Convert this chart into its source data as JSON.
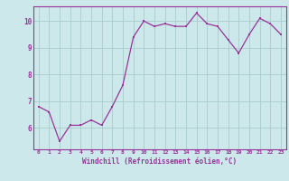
{
  "x": [
    0,
    1,
    2,
    3,
    4,
    5,
    6,
    7,
    8,
    9,
    10,
    11,
    12,
    13,
    14,
    15,
    16,
    17,
    18,
    19,
    20,
    21,
    22,
    23
  ],
  "y": [
    6.8,
    6.6,
    5.5,
    6.1,
    6.1,
    6.3,
    6.1,
    6.8,
    7.6,
    9.4,
    10.0,
    9.8,
    9.9,
    9.8,
    9.8,
    10.3,
    9.9,
    9.8,
    9.3,
    8.8,
    9.5,
    10.1,
    9.9,
    9.5
  ],
  "line_color": "#993399",
  "marker_color": "#993399",
  "bg_color": "#cce8ea",
  "grid_color": "#aacccc",
  "axis_color": "#993399",
  "xlabel": "Windchill (Refroidissement éolien,°C)",
  "ylim": [
    5.2,
    10.55
  ],
  "xlim": [
    -0.5,
    23.5
  ],
  "yticks": [
    6,
    7,
    8,
    9,
    10
  ],
  "xticks": [
    0,
    1,
    2,
    3,
    4,
    5,
    6,
    7,
    8,
    9,
    10,
    11,
    12,
    13,
    14,
    15,
    16,
    17,
    18,
    19,
    20,
    21,
    22,
    23
  ]
}
